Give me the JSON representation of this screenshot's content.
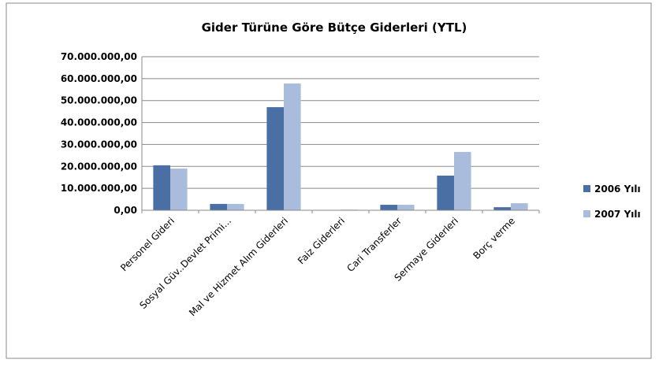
{
  "chart_data": {
    "type": "bar",
    "title": "Gider Türüne Göre Bütçe Giderleri (YTL)",
    "categories": [
      "Personel Gideri",
      "Sosyal Güv..Devlet Primi...",
      "Mal ve Hizmet Alım Giderleri",
      "Faiz Giderleri",
      "Cari Transferler",
      "Sermaye Giderleri",
      "Borç verme"
    ],
    "series": [
      {
        "name": "2006 Yılı",
        "color": "#4a6fa5",
        "values": [
          20500000,
          2900000,
          47000000,
          0,
          2500000,
          15800000,
          1400000
        ]
      },
      {
        "name": "2007 Yılı",
        "color": "#aabcdb",
        "values": [
          19000000,
          2900000,
          57800000,
          300000,
          2500000,
          26600000,
          3200000
        ]
      }
    ],
    "ylim": [
      0,
      70000000
    ],
    "yticks": [
      {
        "value": 0,
        "label": "0,00"
      },
      {
        "value": 10000000,
        "label": "10.000.000,00"
      },
      {
        "value": 20000000,
        "label": "20.000.000,00"
      },
      {
        "value": 30000000,
        "label": "30.000.000,00"
      },
      {
        "value": 40000000,
        "label": "40.000.000,00"
      },
      {
        "value": 50000000,
        "label": "50.000.000,00"
      },
      {
        "value": 60000000,
        "label": "60.000.000,00"
      },
      {
        "value": 70000000,
        "label": "70.000.000,00"
      }
    ],
    "grid": true,
    "legend": "right"
  }
}
